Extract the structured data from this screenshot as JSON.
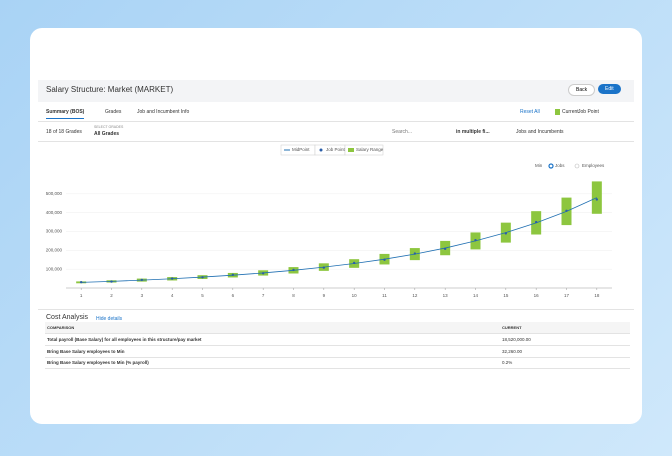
{
  "header": {
    "title": "Salary Structure: Market (MARKET)",
    "buttons": [
      "Back",
      "Edit"
    ]
  },
  "tabs": [
    "Summary (BOS)",
    "Grades",
    "Job and Incumbent Info"
  ],
  "toolbar": {
    "reset": "Reset All",
    "legend": [
      "Current",
      "Job Point"
    ]
  },
  "filters": {
    "count": "18 of 18 Grades",
    "select_label": "SELECT GRADES",
    "select_value": "All Grades",
    "search": "Search...",
    "search_scope": "in multiple fi...",
    "view": "Jobs and Incumbents"
  },
  "toggle": [
    "Min",
    "Jobs",
    "Employees"
  ],
  "chart_data": {
    "type": "range",
    "categories": [
      "1",
      "2",
      "3",
      "4",
      "5",
      "6",
      "7",
      "8",
      "9",
      "10",
      "11",
      "12",
      "13",
      "14",
      "15",
      "16",
      "17",
      "18"
    ],
    "series": [
      {
        "name": "MidPoint",
        "color": "#1f6fb2",
        "values": [
          30000,
          35000,
          42000,
          49000,
          58000,
          68000,
          80000,
          94000,
          111000,
          130000,
          153000,
          180000,
          212000,
          250000,
          294000,
          346000,
          407000,
          480000
        ]
      },
      {
        "name": "Job Point",
        "color": "#2a5ea8",
        "values": [
          31000,
          34000,
          43000,
          50000,
          57000,
          70000,
          78000,
          96000,
          108000,
          133000,
          150000,
          183000,
          208000,
          254000,
          290000,
          350000,
          410000,
          470000
        ]
      },
      {
        "name": "Salary Range",
        "color": "#8dc63f",
        "min": [
          25000,
          29000,
          34000,
          40000,
          48000,
          56000,
          66000,
          77000,
          91000,
          107000,
          125000,
          148000,
          174000,
          205000,
          241000,
          284000,
          334000,
          394000
        ],
        "max": [
          35000,
          41000,
          50000,
          58000,
          68000,
          80000,
          94000,
          111000,
          131000,
          153000,
          181000,
          212000,
          250000,
          295000,
          347000,
          408000,
          480000,
          566000
        ]
      }
    ],
    "ylim": [
      0,
      600000
    ],
    "yticks": [
      {
        "value": 100000,
        "label": "100,000"
      },
      {
        "value": 200000,
        "label": "200,000"
      },
      {
        "value": 300000,
        "label": "300,000"
      },
      {
        "value": 400000,
        "label": "400,000"
      },
      {
        "value": 500000,
        "label": "500,000"
      }
    ],
    "grid": true
  },
  "cost": {
    "title": "Cost Analysis",
    "toggle": "Hide details",
    "table": {
      "columns": [
        "COMPARISON",
        "CURRENT"
      ],
      "rows": [
        [
          "Total payroll (Base Salary) for all employees in this structure/pay market",
          "18,520,000.00"
        ],
        [
          "Bring Base Salary employees to Min",
          "32,260.00"
        ],
        [
          "Bring Base Salary employees to Min (% payroll)",
          "0.2%"
        ]
      ]
    }
  }
}
